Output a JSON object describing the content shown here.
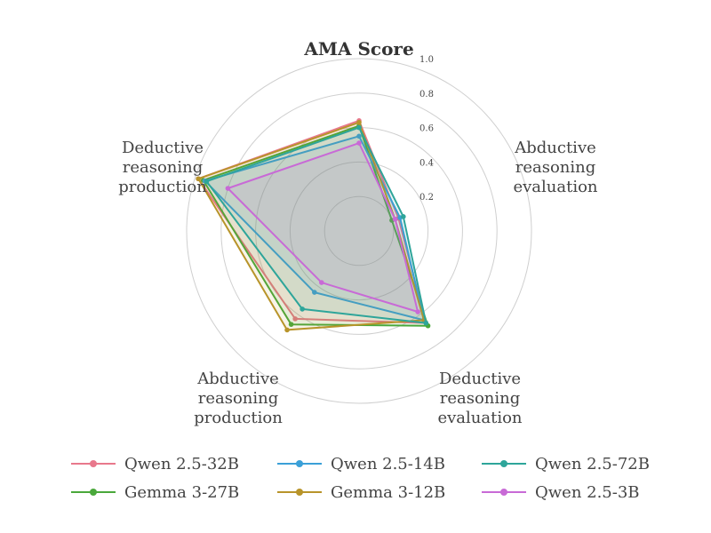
{
  "chart_data": {
    "type": "radar",
    "title": "AMA Score",
    "axes": [
      "Abductive reasoning evaluation",
      "Deductive reasoning evaluation",
      "Abductive reasoning production",
      "Deductive reasoning production",
      "AMA Score"
    ],
    "axis_label_lines": [
      [
        "Abductive",
        "reasoning",
        "evaluation"
      ],
      [
        "Deductive",
        "reasoning",
        "evaluation"
      ],
      [
        "Abductive",
        "reasoning",
        "production"
      ],
      [
        "Deductive",
        "reasoning",
        "production"
      ]
    ],
    "rlim": [
      0,
      1.0
    ],
    "rticks": [
      "0.2",
      "0.4",
      "0.6",
      "0.8",
      "1.0"
    ],
    "rtick_values": [
      0.2,
      0.4,
      0.6,
      0.8,
      1.0
    ],
    "grid": true,
    "legend_position": "bottom",
    "series": [
      {
        "name": "Qwen 2.5-32B",
        "color": "#e8788c",
        "values": [
          0.24,
          0.66,
          0.63,
          0.98,
          0.64
        ]
      },
      {
        "name": "Gemma 3-27B",
        "color": "#4aa83b",
        "values": [
          0.2,
          0.68,
          0.67,
          0.95,
          0.61
        ]
      },
      {
        "name": "Qwen 2.5-14B",
        "color": "#3ba0d8",
        "values": [
          0.25,
          0.64,
          0.44,
          0.94,
          0.55
        ]
      },
      {
        "name": "Gemma 3-12B",
        "color": "#b8942a",
        "values": [
          0.22,
          0.64,
          0.71,
          0.98,
          0.63
        ]
      },
      {
        "name": "Qwen 2.5-72B",
        "color": "#2ea59a",
        "values": [
          0.27,
          0.66,
          0.56,
          0.93,
          0.6
        ]
      },
      {
        "name": "Qwen 2.5-3B",
        "color": "#c86ad6",
        "values": [
          0.22,
          0.58,
          0.37,
          0.8,
          0.51
        ]
      }
    ]
  }
}
